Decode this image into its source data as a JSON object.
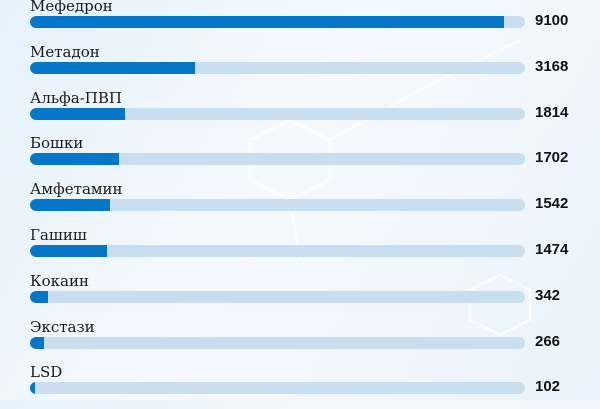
{
  "chart_data": {
    "type": "bar",
    "orientation": "horizontal",
    "categories": [
      "Мефедрон",
      "Метадон",
      "Альфа-ПВП",
      "Бошки",
      "Амфетамин",
      "Гашиш",
      "Кокаин",
      "Экстази",
      "LSD"
    ],
    "values": [
      9100,
      3168,
      1814,
      1702,
      1542,
      1474,
      342,
      266,
      102
    ],
    "xlim": [
      0,
      9500
    ],
    "grid": false,
    "colors": {
      "fill": "#0576c8",
      "track": "#c9dff0",
      "background": "#eef5fb"
    }
  }
}
